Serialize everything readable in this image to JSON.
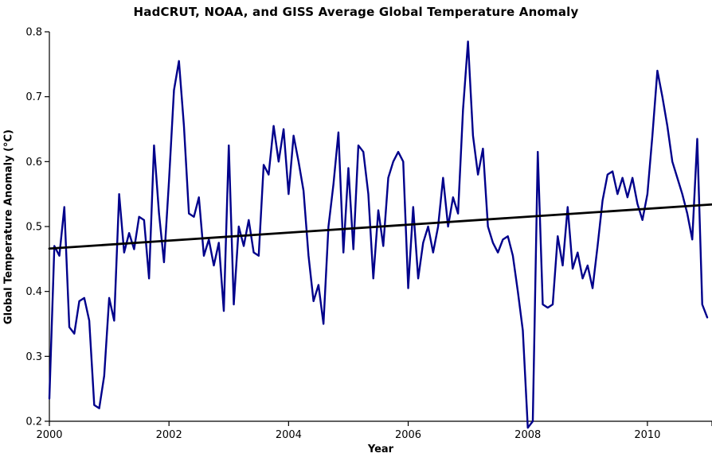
{
  "title": "HadCRUT, NOAA, and GISS Average Global Temperature Anomaly",
  "chart_data": {
    "type": "line",
    "title": "HadCRUT, NOAA, and GISS Average Global Temperature Anomaly",
    "xlabel": "Year",
    "ylabel": "Global Temperature Anomaly (°C)",
    "xlim": [
      2000,
      2011.08
    ],
    "ylim": [
      0.2,
      0.8
    ],
    "grid": false,
    "legend": null,
    "background": "#ffffff",
    "axis_color": "#000000",
    "x_ticks": [
      2000,
      2002,
      2004,
      2006,
      2008,
      2010
    ],
    "y_ticks": [
      0.2,
      0.3,
      0.4,
      0.5,
      0.6,
      0.7,
      0.8
    ],
    "series": [
      {
        "name": "HadCRUT, NOAA and GISS average monthly anomaly",
        "start": "2000-01",
        "interval": "monthly",
        "color": "#00008B",
        "values": [
          0.235,
          0.47,
          0.455,
          0.53,
          0.345,
          0.335,
          0.385,
          0.39,
          0.355,
          0.225,
          0.22,
          0.27,
          0.39,
          0.355,
          0.55,
          0.46,
          0.49,
          0.465,
          0.515,
          0.51,
          0.42,
          0.625,
          0.52,
          0.445,
          0.57,
          0.71,
          0.755,
          0.655,
          0.52,
          0.515,
          0.545,
          0.455,
          0.48,
          0.44,
          0.475,
          0.37,
          0.625,
          0.38,
          0.5,
          0.47,
          0.51,
          0.46,
          0.455,
          0.595,
          0.58,
          0.655,
          0.6,
          0.65,
          0.55,
          0.64,
          0.6,
          0.555,
          0.455,
          0.385,
          0.41,
          0.35,
          0.5,
          0.565,
          0.645,
          0.46,
          0.59,
          0.465,
          0.625,
          0.615,
          0.55,
          0.42,
          0.525,
          0.47,
          0.575,
          0.6,
          0.615,
          0.6,
          0.405,
          0.53,
          0.42,
          0.475,
          0.5,
          0.46,
          0.5,
          0.575,
          0.5,
          0.545,
          0.52,
          0.68,
          0.785,
          0.64,
          0.58,
          0.62,
          0.5,
          0.475,
          0.46,
          0.48,
          0.485,
          0.455,
          0.4,
          0.34,
          0.19,
          0.2,
          0.615,
          0.38,
          0.375,
          0.38,
          0.485,
          0.44,
          0.53,
          0.435,
          0.46,
          0.42,
          0.44,
          0.405,
          0.47,
          0.54,
          0.58,
          0.585,
          0.55,
          0.575,
          0.545,
          0.575,
          0.535,
          0.51,
          0.55,
          0.64,
          0.74,
          0.7,
          0.655,
          0.6,
          0.575,
          0.55,
          0.52,
          0.48,
          0.635,
          0.38,
          0.36
        ]
      },
      {
        "name": "Linear trend",
        "role": "trend",
        "color": "#000000",
        "points": [
          {
            "x": 2000.0,
            "y": 0.466
          },
          {
            "x": 2011.08,
            "y": 0.534
          }
        ]
      }
    ]
  }
}
